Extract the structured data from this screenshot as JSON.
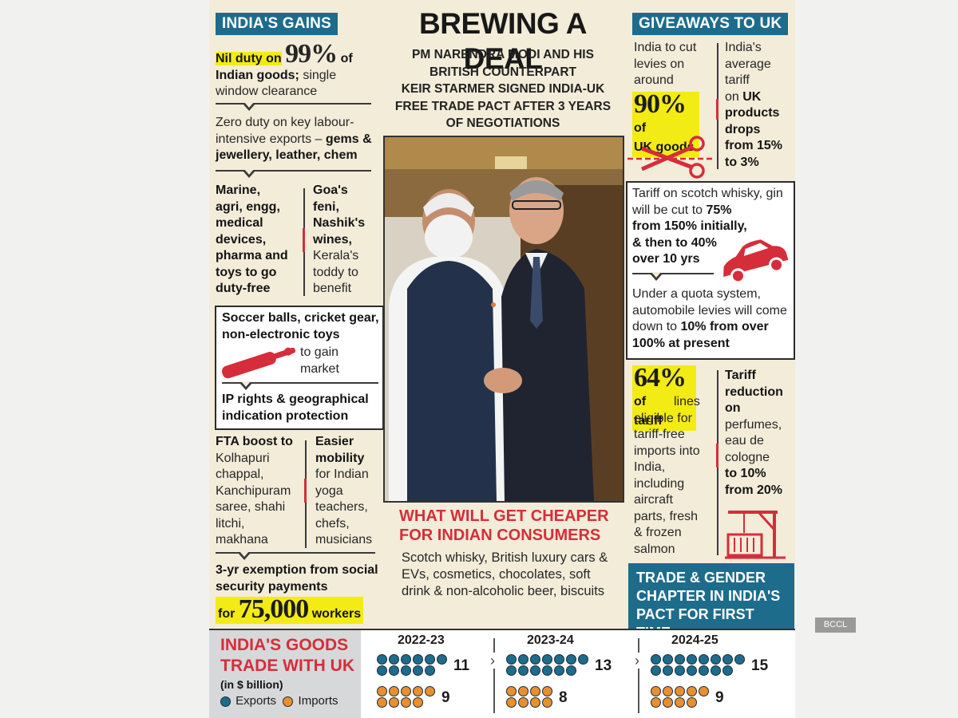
{
  "header": {
    "title": "BREWING A DEAL",
    "subtitle_lines": [
      "PM NARENDRA MODI AND HIS",
      "BRITISH COUNTERPART",
      "KEIR STARMER SIGNED INDIA-UK",
      "FREE TRADE PACT AFTER 3 YEARS",
      "OF NEGOTIATIONS"
    ]
  },
  "left": {
    "heading": "INDIA'S GAINS",
    "nil_pre": "Nil duty on",
    "nil_num": "99%",
    "nil_of": "of",
    "nil_bold2": "Indian goods;",
    "nil_rest": "single window clearance",
    "zero_pre": "Zero duty on key labour-intensive exports –",
    "zero_bold": "gems & jewellery, leather, chem",
    "marine": [
      "Marine,",
      "agri, engg,",
      "medical",
      "devices,",
      "pharma and",
      "toys to go",
      "duty-free"
    ],
    "goa_bold": [
      "Goa's",
      "feni,",
      "Nashik's",
      "wines,"
    ],
    "goa_rest": [
      "Kerala's",
      "toddy to",
      "benefit"
    ],
    "soccer_bold": "Soccer balls, cricket gear, non-electronic toys",
    "soccer_rest": "to gain market",
    "ip": "IP rights & geographical indication protection",
    "fta_bold": "FTA boost to",
    "fta_rest": [
      "Kolhapuri",
      "chappal,",
      "Kanchipuram",
      "saree, shahi",
      "litchi,",
      "makhana"
    ],
    "mob_bold": [
      "Easier",
      "mobility"
    ],
    "mob_rest": [
      "for Indian",
      "yoga",
      "teachers,",
      "chefs,",
      "musicians"
    ],
    "exempt": "3-yr exemption from social security payments",
    "exempt_for": "for",
    "exempt_num": "75,000",
    "exempt_workers": "workers"
  },
  "center": {
    "cheaper_title": "WHAT WILL GET CHEAPER FOR INDIAN CONSUMERS",
    "cheaper_body": "Scotch whisky, British luxury cars & EVs, cosmetics, chocolates, soft drink & non-alcoholic beer, biscuits"
  },
  "right": {
    "heading": "GIVEAWAYS TO UK",
    "cut_pre": [
      "India to cut",
      "levies on",
      "around"
    ],
    "cut_num": "90%",
    "cut_of": "of",
    "cut_bold": "UK goods",
    "avg_pre": [
      "India's",
      "average",
      "tariff",
      "on"
    ],
    "avg_bold": [
      "UK",
      "products",
      "drops",
      "from 15%",
      "to 3%"
    ],
    "whisky_pre": "Tariff on scotch whisky, gin will be cut to",
    "whisky_bold": [
      "75%",
      "from 150% initially,",
      "&  then to 40%",
      "over 10 yrs"
    ],
    "quota_pre": "Under a quota system, automobile levies will come down to",
    "quota_bold": "10% from over 100% at present",
    "lines_num": "64%",
    "lines_of": "of",
    "lines_bold": "tariff",
    "lines_rest": [
      "lines",
      "eligible for",
      "tariff-free",
      "imports into",
      "India,",
      "including",
      "aircraft",
      "parts, fresh",
      "& frozen",
      "salmon"
    ],
    "perf_bold": [
      "Tariff",
      "reduction",
      "on"
    ],
    "perf_rest": [
      "perfumes,",
      "eau de",
      "cologne"
    ],
    "perf_bold2": [
      "to 10%",
      "from 20%"
    ],
    "gender": [
      "TRADE & GENDER",
      "CHAPTER IN INDIA'S",
      "PACT FOR FIRST TIME"
    ]
  },
  "trade": {
    "title": [
      "INDIA'S GOODS",
      "TRADE WITH UK"
    ],
    "unit": "(in $ billion)",
    "legend_exports": "Exports",
    "legend_imports": "Imports",
    "years": [
      {
        "year": "2022-23",
        "exports": 11,
        "imports": 9
      },
      {
        "year": "2023-24",
        "exports": 13,
        "imports": 8
      },
      {
        "year": "2024-25",
        "exports": 15,
        "imports": 9
      }
    ]
  },
  "credit": "BCCL",
  "colors": {
    "teal": "#1d6c8c",
    "red": "#d62d3a",
    "highlight": "#f3eb14",
    "orange": "#e8902e",
    "paper": "#f3ecd9"
  }
}
